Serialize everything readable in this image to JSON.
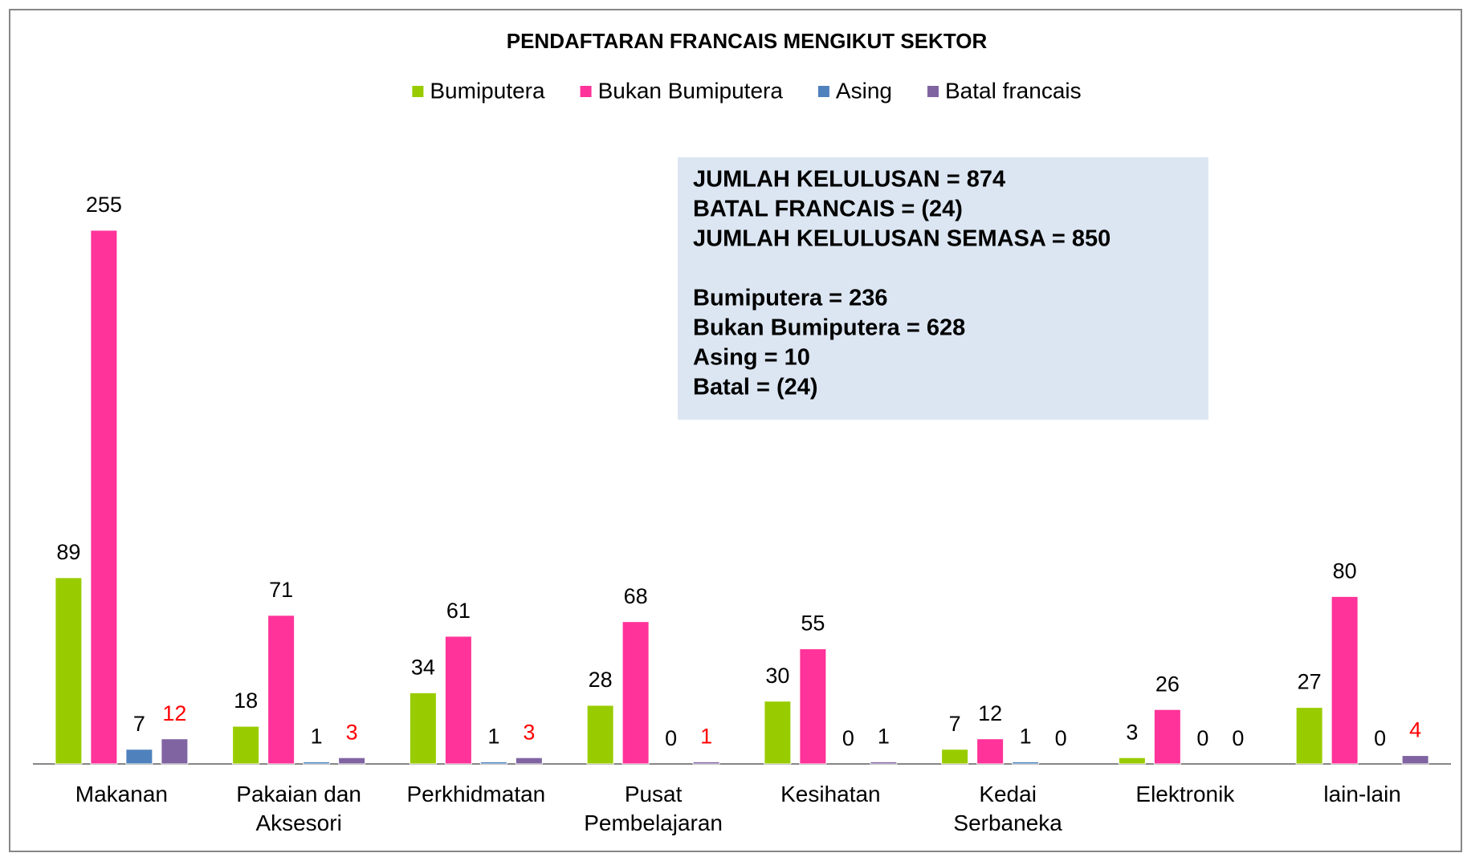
{
  "chart_data": {
    "type": "bar",
    "title": "PENDAFTARAN FRANCAIS MENGIKUT SEKTOR",
    "categories": [
      "Makanan",
      "Pakaian dan Aksesori",
      "Perkhidmatan",
      "Pusat Pembelajaran",
      "Kesihatan",
      "Kedai Serbaneka",
      "Elektronik",
      "lain-lain"
    ],
    "series": [
      {
        "name": "Bumiputera",
        "color": "#99cc00",
        "values": [
          89,
          18,
          34,
          28,
          30,
          7,
          3,
          27
        ]
      },
      {
        "name": "Bukan Bumiputera",
        "color": "#ff3399",
        "values": [
          255,
          71,
          61,
          68,
          55,
          12,
          26,
          80
        ]
      },
      {
        "name": "Asing",
        "color": "#4f81bd",
        "values": [
          7,
          1,
          1,
          0,
          0,
          1,
          0,
          0
        ]
      },
      {
        "name": "Batal francais",
        "color": "#8064a2",
        "values": [
          12,
          3,
          3,
          1,
          1,
          0,
          0,
          4
        ],
        "value_label_colors": [
          "#ff0000",
          "#ff0000",
          "#ff0000",
          "#ff0000",
          "#000000",
          "#000000",
          "#000000",
          "#ff0000"
        ]
      }
    ],
    "legend": "top",
    "annotation": {
      "color": "#dce6f2",
      "lines": [
        [
          "JUMLAH KELULUSAN = 874",
          "BATAL FRANCAIS = (24)",
          "JUMLAH KELULUSAN SEMASA = 850"
        ],
        [
          "Bumiputera = 236",
          "Bukan Bumiputera = 628",
          "Asing = 10",
          "Batal = (24)"
        ]
      ]
    }
  }
}
